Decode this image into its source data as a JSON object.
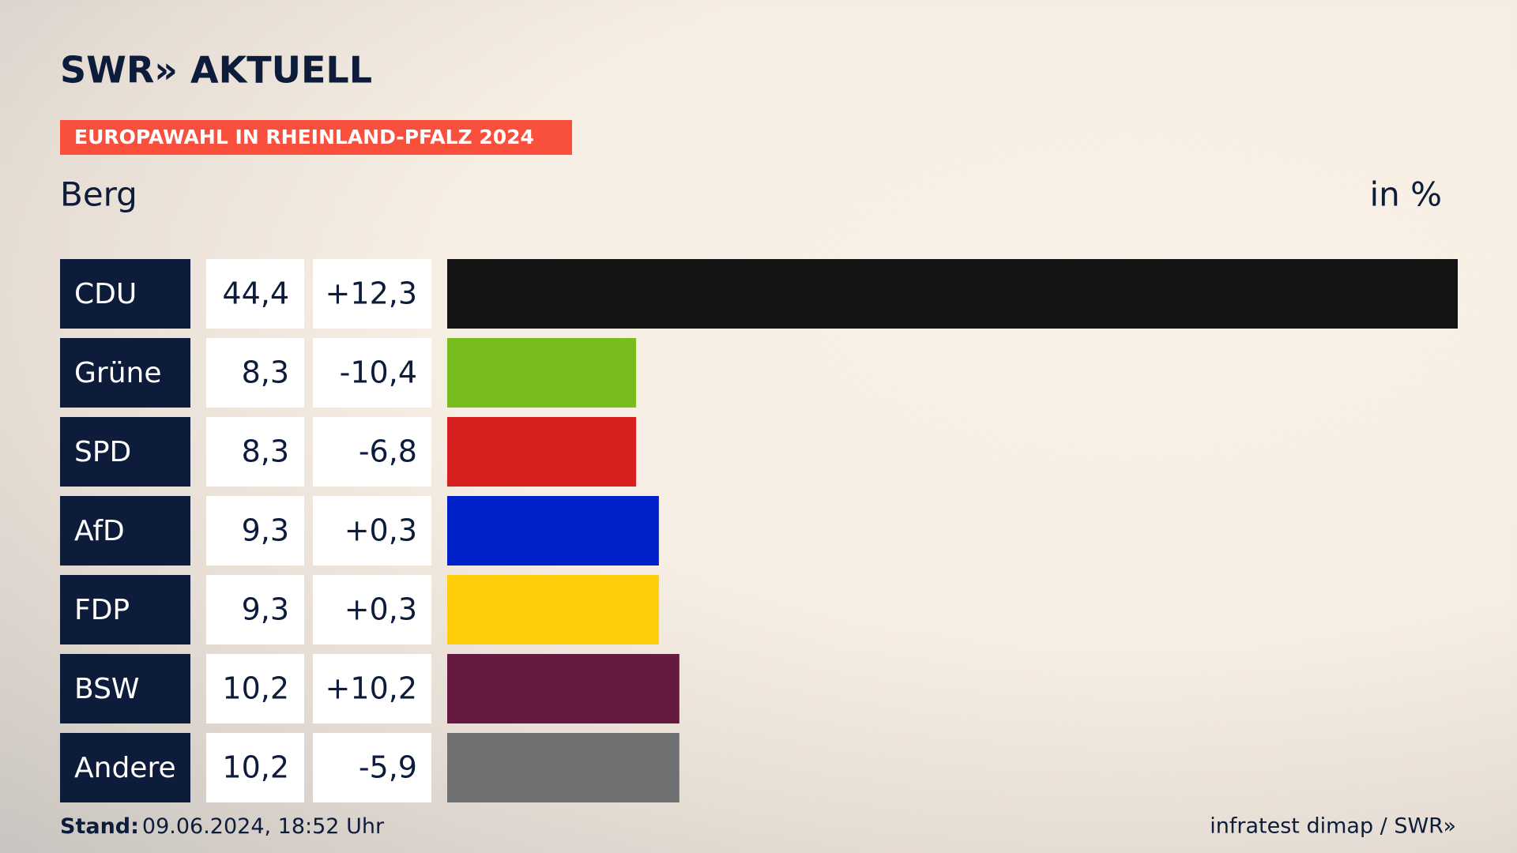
{
  "brand": "SWR» AKTUELL",
  "banner": "EUROPAWAHL IN RHEINLAND-PFALZ 2024",
  "footer": {
    "stand_label": "Stand:",
    "stand_value": "09.06.2024, 18:52 Uhr",
    "source": "infratest dimap / SWR»"
  },
  "chart_data": {
    "type": "bar",
    "title": "Berg",
    "unit": "in %",
    "categories": [
      "CDU",
      "Grüne",
      "SPD",
      "AfD",
      "FDP",
      "BSW",
      "Andere"
    ],
    "values": [
      44.4,
      8.3,
      8.3,
      9.3,
      9.3,
      10.2,
      10.2
    ],
    "value_labels": [
      "44,4",
      "8,3",
      "8,3",
      "9,3",
      "9,3",
      "10,2",
      "10,2"
    ],
    "changes": [
      12.3,
      -10.4,
      -6.8,
      0.3,
      0.3,
      10.2,
      -5.9
    ],
    "change_labels": [
      "+12,3",
      "-10,4",
      "-6,8",
      "+0,3",
      "+0,3",
      "+10,2",
      "-5,9"
    ],
    "colors": [
      "#141414",
      "#78bd1e",
      "#d71f1f",
      "#0020c8",
      "#ffcc0a",
      "#661a40",
      "#6f7072"
    ]
  }
}
